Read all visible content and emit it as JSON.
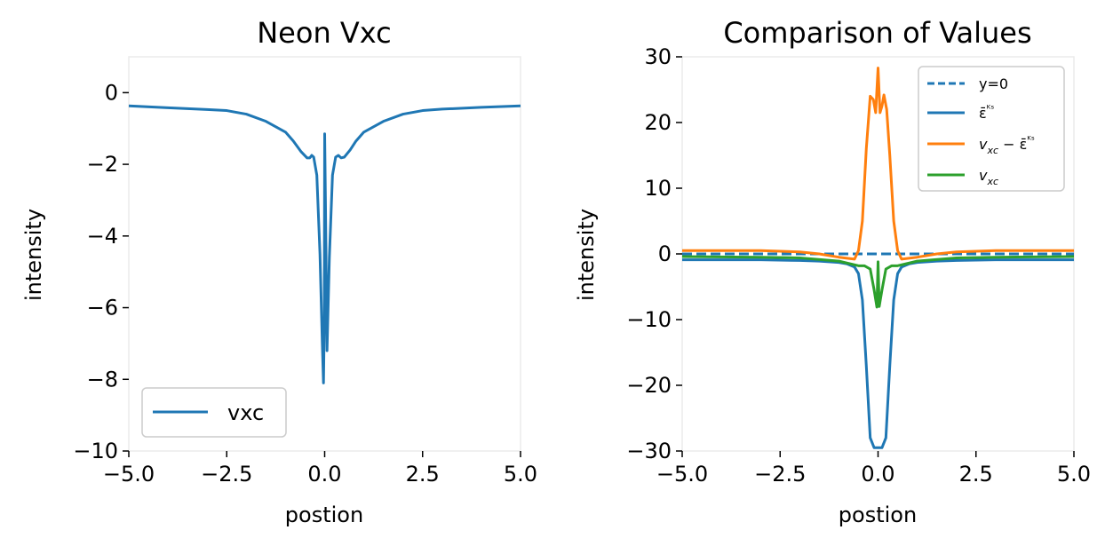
{
  "chart_data": [
    {
      "type": "line",
      "title": "Neon Vxc",
      "xlabel": "postion",
      "ylabel": "intensity",
      "xlim": [
        -5,
        5
      ],
      "ylim": [
        -10,
        1
      ],
      "grid": false,
      "legend_position": "lower-left",
      "x_ticks": [
        -5,
        -2.5,
        0,
        2.5,
        5
      ],
      "x_tick_labels": [
        "−5.0",
        "−2.5",
        "0.0",
        "2.5",
        "5.0"
      ],
      "y_ticks": [
        0,
        -2,
        -4,
        -6,
        -8,
        -10
      ],
      "y_tick_labels": [
        "0",
        "−2",
        "−4",
        "−6",
        "−8",
        "−10"
      ],
      "series": [
        {
          "name": "vxc",
          "color": "#1f77b4",
          "points": [
            [
              -5.0,
              -0.37
            ],
            [
              -4.0,
              -0.42
            ],
            [
              -3.0,
              -0.47
            ],
            [
              -2.5,
              -0.5
            ],
            [
              -2.0,
              -0.6
            ],
            [
              -1.5,
              -0.8
            ],
            [
              -1.0,
              -1.1
            ],
            [
              -0.8,
              -1.35
            ],
            [
              -0.6,
              -1.65
            ],
            [
              -0.45,
              -1.82
            ],
            [
              -0.38,
              -1.82
            ],
            [
              -0.33,
              -1.75
            ],
            [
              -0.28,
              -1.8
            ],
            [
              -0.2,
              -2.3
            ],
            [
              -0.12,
              -4.5
            ],
            [
              -0.06,
              -7.0
            ],
            [
              -0.03,
              -8.1
            ],
            [
              -0.01,
              -6.5
            ],
            [
              0.0,
              -1.15
            ],
            [
              0.02,
              -3.0
            ],
            [
              0.06,
              -7.2
            ],
            [
              0.12,
              -4.6
            ],
            [
              0.2,
              -2.3
            ],
            [
              0.28,
              -1.8
            ],
            [
              0.35,
              -1.75
            ],
            [
              0.42,
              -1.82
            ],
            [
              0.5,
              -1.8
            ],
            [
              0.65,
              -1.6
            ],
            [
              0.8,
              -1.35
            ],
            [
              1.0,
              -1.1
            ],
            [
              1.5,
              -0.8
            ],
            [
              2.0,
              -0.6
            ],
            [
              2.5,
              -0.5
            ],
            [
              3.0,
              -0.46
            ],
            [
              4.0,
              -0.41
            ],
            [
              5.0,
              -0.37
            ]
          ]
        }
      ]
    },
    {
      "type": "line",
      "title": "Comparison of Values",
      "xlabel": "postion",
      "ylabel": "intensity",
      "xlim": [
        -5,
        5
      ],
      "ylim": [
        -30,
        30
      ],
      "grid": false,
      "legend_position": "upper-right",
      "x_ticks": [
        -5,
        -2.5,
        0,
        2.5,
        5
      ],
      "x_tick_labels": [
        "−5.0",
        "−2.5",
        "0.0",
        "2.5",
        "5.0"
      ],
      "y_ticks": [
        30,
        20,
        10,
        0,
        -10,
        -20,
        -30
      ],
      "y_tick_labels": [
        "30",
        "20",
        "10",
        "0",
        "−10",
        "−20",
        "−30"
      ],
      "series": [
        {
          "name": "y=0",
          "color": "#1f77b4",
          "dashed": true,
          "points": [
            [
              -5.0,
              0
            ],
            [
              5.0,
              0
            ]
          ]
        },
        {
          "name": "ε̄ᴷˢ",
          "color": "#1f77b4",
          "points": [
            [
              -5.0,
              -0.9
            ],
            [
              -3.0,
              -0.9
            ],
            [
              -2.0,
              -1.0
            ],
            [
              -1.5,
              -1.1
            ],
            [
              -1.0,
              -1.3
            ],
            [
              -0.8,
              -1.5
            ],
            [
              -0.6,
              -2.0
            ],
            [
              -0.5,
              -3.0
            ],
            [
              -0.4,
              -7.0
            ],
            [
              -0.3,
              -17.0
            ],
            [
              -0.2,
              -28.0
            ],
            [
              -0.1,
              -29.5
            ],
            [
              0.0,
              -29.5
            ],
            [
              0.1,
              -29.5
            ],
            [
              0.2,
              -28.0
            ],
            [
              0.3,
              -17.0
            ],
            [
              0.4,
              -7.0
            ],
            [
              0.5,
              -3.0
            ],
            [
              0.6,
              -2.0
            ],
            [
              0.8,
              -1.5
            ],
            [
              1.0,
              -1.3
            ],
            [
              1.5,
              -1.1
            ],
            [
              2.0,
              -1.0
            ],
            [
              3.0,
              -0.9
            ],
            [
              5.0,
              -0.9
            ]
          ]
        },
        {
          "name": "v_xc − ε̄ᴷˢ",
          "color": "#ff7f0e",
          "points": [
            [
              -5.0,
              0.5
            ],
            [
              -3.0,
              0.5
            ],
            [
              -2.0,
              0.3
            ],
            [
              -1.5,
              0.0
            ],
            [
              -1.0,
              -0.5
            ],
            [
              -0.6,
              -0.8
            ],
            [
              -0.5,
              0.5
            ],
            [
              -0.4,
              5.0
            ],
            [
              -0.3,
              16.0
            ],
            [
              -0.2,
              24.0
            ],
            [
              -0.12,
              23.5
            ],
            [
              -0.06,
              21.5
            ],
            [
              0.0,
              28.3
            ],
            [
              0.05,
              21.5
            ],
            [
              0.1,
              22.5
            ],
            [
              0.15,
              24.2
            ],
            [
              0.22,
              22.0
            ],
            [
              0.3,
              15.0
            ],
            [
              0.4,
              5.0
            ],
            [
              0.5,
              0.5
            ],
            [
              0.6,
              -0.8
            ],
            [
              1.0,
              -0.5
            ],
            [
              1.5,
              0.0
            ],
            [
              2.0,
              0.3
            ],
            [
              3.0,
              0.5
            ],
            [
              5.0,
              0.5
            ]
          ]
        },
        {
          "name": "v_xc",
          "color": "#2ca02c",
          "points": [
            [
              -5.0,
              -0.4
            ],
            [
              -3.0,
              -0.5
            ],
            [
              -2.0,
              -0.6
            ],
            [
              -1.0,
              -1.1
            ],
            [
              -0.5,
              -1.8
            ],
            [
              -0.35,
              -1.8
            ],
            [
              -0.2,
              -2.3
            ],
            [
              -0.1,
              -5.5
            ],
            [
              -0.03,
              -8.1
            ],
            [
              0.0,
              -1.2
            ],
            [
              0.03,
              -8.0
            ],
            [
              0.1,
              -5.5
            ],
            [
              0.2,
              -2.3
            ],
            [
              0.35,
              -1.8
            ],
            [
              0.5,
              -1.8
            ],
            [
              1.0,
              -1.1
            ],
            [
              2.0,
              -0.6
            ],
            [
              3.0,
              -0.5
            ],
            [
              5.0,
              -0.4
            ]
          ]
        }
      ]
    }
  ]
}
